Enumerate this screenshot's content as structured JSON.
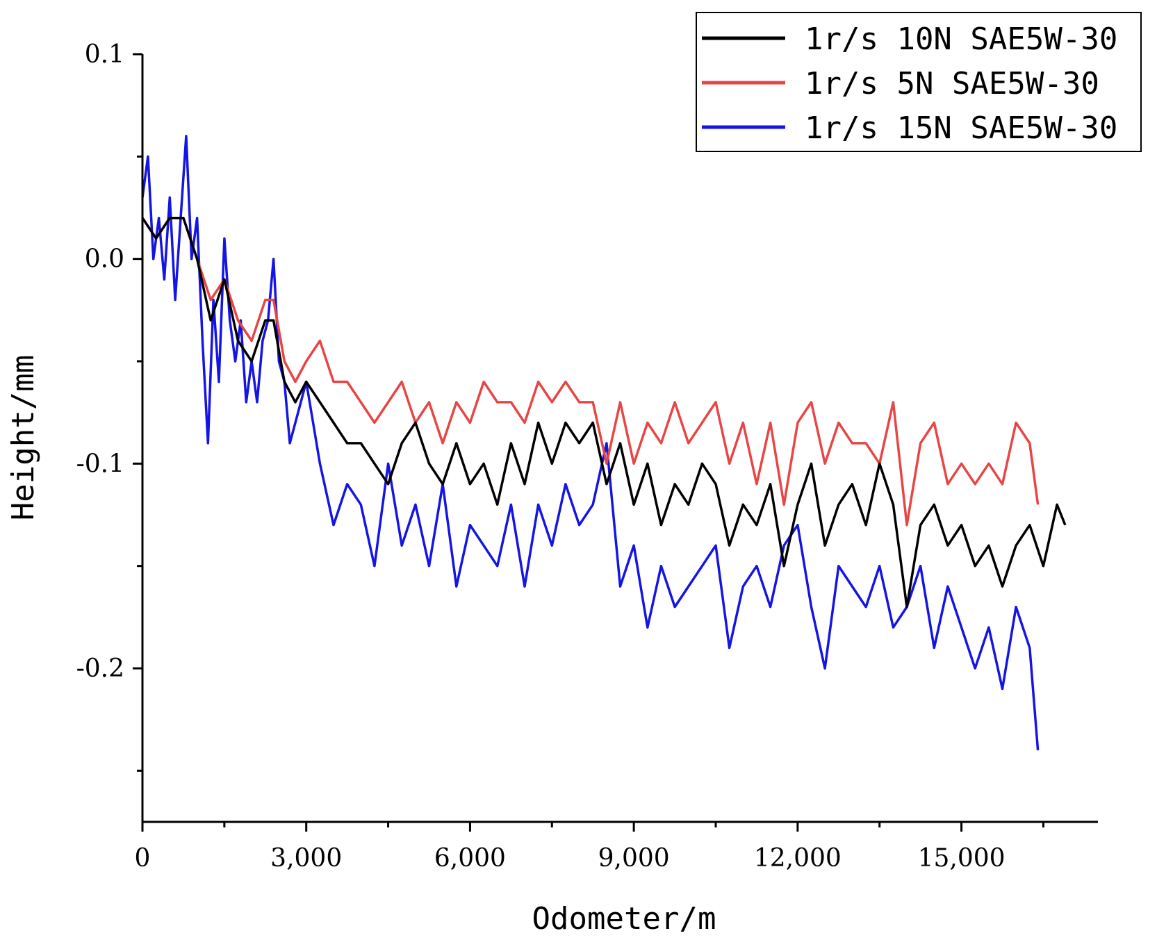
{
  "chart_data": {
    "type": "line",
    "xlabel": "Odometer/m",
    "ylabel": "Height/mm",
    "xlim": [
      0,
      17500
    ],
    "ylim": [
      -0.275,
      0.1
    ],
    "xticks": [
      0,
      3000,
      6000,
      9000,
      12000,
      15000
    ],
    "xtick_labels": [
      "0",
      "3,000",
      "6,000",
      "9,000",
      "12,000",
      "15,000"
    ],
    "yticks": [
      0.1,
      0.0,
      -0.1,
      -0.2
    ],
    "ytick_labels": [
      "0.1",
      "0.0",
      "-0.1",
      "-0.2"
    ],
    "grid": false,
    "legend_position": "top-right",
    "legend": [
      "1r/s 10N SAE5W-30",
      "1r/s 5N SAE5W-30",
      "1r/s 15N SAE5W-30"
    ],
    "series": [
      {
        "name": "1r/s 10N SAE5W-30",
        "color": "#000000",
        "x": [
          0,
          250,
          500,
          750,
          1000,
          1250,
          1500,
          1750,
          2000,
          2250,
          2400,
          2600,
          2800,
          3000,
          3250,
          3500,
          3750,
          4000,
          4250,
          4500,
          4750,
          5000,
          5250,
          5500,
          5750,
          6000,
          6250,
          6500,
          6750,
          7000,
          7250,
          7500,
          7750,
          8000,
          8250,
          8500,
          8750,
          9000,
          9250,
          9500,
          9750,
          10000,
          10250,
          10500,
          10750,
          11000,
          11250,
          11500,
          11750,
          12000,
          12250,
          12500,
          12750,
          13000,
          13250,
          13500,
          13750,
          14000,
          14250,
          14500,
          14750,
          15000,
          15250,
          15500,
          15750,
          16000,
          16250,
          16500,
          16750,
          16900
        ],
        "y": [
          0.02,
          0.01,
          0.02,
          0.02,
          0.0,
          -0.03,
          -0.01,
          -0.04,
          -0.05,
          -0.03,
          -0.03,
          -0.06,
          -0.07,
          -0.06,
          -0.07,
          -0.08,
          -0.09,
          -0.09,
          -0.1,
          -0.11,
          -0.09,
          -0.08,
          -0.1,
          -0.11,
          -0.09,
          -0.11,
          -0.1,
          -0.12,
          -0.09,
          -0.11,
          -0.08,
          -0.1,
          -0.08,
          -0.09,
          -0.08,
          -0.11,
          -0.09,
          -0.12,
          -0.1,
          -0.13,
          -0.11,
          -0.12,
          -0.1,
          -0.11,
          -0.14,
          -0.12,
          -0.13,
          -0.11,
          -0.15,
          -0.12,
          -0.1,
          -0.14,
          -0.12,
          -0.11,
          -0.13,
          -0.1,
          -0.12,
          -0.17,
          -0.13,
          -0.12,
          -0.14,
          -0.13,
          -0.15,
          -0.14,
          -0.16,
          -0.14,
          -0.13,
          -0.15,
          -0.12,
          -0.13
        ]
      },
      {
        "name": "1r/s 5N SAE5W-30",
        "color": "#e84545",
        "x": [
          0,
          250,
          500,
          750,
          1000,
          1250,
          1500,
          1750,
          2000,
          2250,
          2400,
          2600,
          2800,
          3000,
          3250,
          3500,
          3750,
          4000,
          4250,
          4500,
          4750,
          5000,
          5250,
          5500,
          5750,
          6000,
          6250,
          6500,
          6750,
          7000,
          7250,
          7500,
          7750,
          8000,
          8250,
          8500,
          8750,
          9000,
          9250,
          9500,
          9750,
          10000,
          10250,
          10500,
          10750,
          11000,
          11250,
          11500,
          11750,
          12000,
          12250,
          12500,
          12750,
          13000,
          13250,
          13500,
          13750,
          14000,
          14250,
          14500,
          14750,
          15000,
          15250,
          15500,
          15750,
          16000,
          16250,
          16400
        ],
        "y": [
          0.02,
          0.01,
          0.02,
          0.02,
          0.0,
          -0.02,
          -0.01,
          -0.03,
          -0.04,
          -0.02,
          -0.02,
          -0.05,
          -0.06,
          -0.05,
          -0.04,
          -0.06,
          -0.06,
          -0.07,
          -0.08,
          -0.07,
          -0.06,
          -0.08,
          -0.07,
          -0.09,
          -0.07,
          -0.08,
          -0.06,
          -0.07,
          -0.07,
          -0.08,
          -0.06,
          -0.07,
          -0.06,
          -0.07,
          -0.07,
          -0.1,
          -0.07,
          -0.1,
          -0.08,
          -0.09,
          -0.07,
          -0.09,
          -0.08,
          -0.07,
          -0.1,
          -0.08,
          -0.11,
          -0.08,
          -0.12,
          -0.08,
          -0.07,
          -0.1,
          -0.08,
          -0.09,
          -0.09,
          -0.1,
          -0.07,
          -0.13,
          -0.09,
          -0.08,
          -0.11,
          -0.1,
          -0.11,
          -0.1,
          -0.11,
          -0.08,
          -0.09,
          -0.12
        ]
      },
      {
        "name": "1r/s 15N SAE5W-30",
        "color": "#1414e6",
        "x": [
          0,
          100,
          200,
          300,
          400,
          500,
          600,
          700,
          800,
          900,
          1000,
          1100,
          1200,
          1300,
          1400,
          1500,
          1600,
          1700,
          1800,
          1900,
          2000,
          2100,
          2200,
          2300,
          2400,
          2500,
          2600,
          2700,
          2800,
          2900,
          3000,
          3250,
          3500,
          3750,
          4000,
          4250,
          4500,
          4750,
          5000,
          5250,
          5500,
          5750,
          6000,
          6250,
          6500,
          6750,
          7000,
          7250,
          7500,
          7750,
          8000,
          8250,
          8500,
          8750,
          9000,
          9250,
          9500,
          9750,
          10000,
          10250,
          10500,
          10750,
          11000,
          11250,
          11500,
          11750,
          12000,
          12250,
          12500,
          12750,
          13000,
          13250,
          13500,
          13750,
          14000,
          14250,
          14500,
          14750,
          15000,
          15250,
          15500,
          15750,
          16000,
          16250,
          16400
        ],
        "y": [
          0.03,
          0.05,
          0.0,
          0.02,
          -0.01,
          0.03,
          -0.02,
          0.02,
          0.06,
          0.0,
          0.02,
          -0.04,
          -0.09,
          -0.02,
          -0.06,
          0.01,
          -0.03,
          -0.05,
          -0.03,
          -0.07,
          -0.05,
          -0.07,
          -0.04,
          -0.03,
          0.0,
          -0.05,
          -0.06,
          -0.09,
          -0.08,
          -0.07,
          -0.06,
          -0.1,
          -0.13,
          -0.11,
          -0.12,
          -0.15,
          -0.1,
          -0.14,
          -0.12,
          -0.15,
          -0.11,
          -0.16,
          -0.13,
          -0.14,
          -0.15,
          -0.12,
          -0.16,
          -0.12,
          -0.14,
          -0.11,
          -0.13,
          -0.12,
          -0.09,
          -0.16,
          -0.14,
          -0.18,
          -0.15,
          -0.17,
          -0.16,
          -0.15,
          -0.14,
          -0.19,
          -0.16,
          -0.15,
          -0.17,
          -0.14,
          -0.13,
          -0.17,
          -0.2,
          -0.15,
          -0.16,
          -0.17,
          -0.15,
          -0.18,
          -0.17,
          -0.15,
          -0.19,
          -0.16,
          -0.18,
          -0.2,
          -0.18,
          -0.21,
          -0.17,
          -0.19,
          -0.24
        ]
      }
    ]
  }
}
